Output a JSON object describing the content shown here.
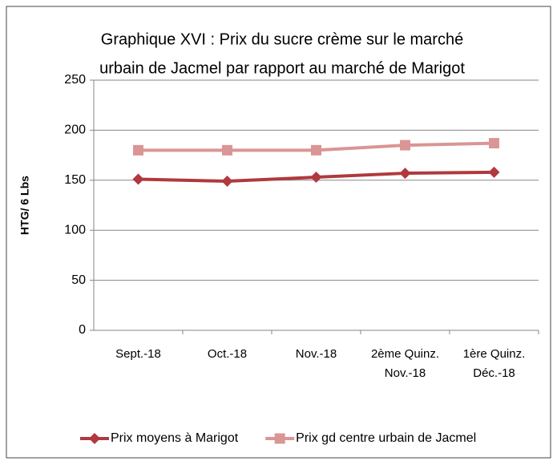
{
  "chart_data": {
    "type": "line",
    "title": [
      "Graphique XVI : Prix du sucre crème sur le marché",
      "urbain de Jacmel par rapport au marché de Marigot"
    ],
    "ylabel": "HTG/ 6 Lbs",
    "categories": [
      "Sept.-18",
      "Oct.-18",
      "Nov.-18",
      "2ème Quinz. Nov.-18",
      "1ère Quinz. Déc.-18"
    ],
    "series": [
      {
        "name": "Prix moyens à Marigot",
        "color": "#b0393d",
        "marker": "diamond",
        "values": [
          151,
          149,
          153,
          157,
          158
        ]
      },
      {
        "name": "Prix gd centre urbain de Jacmel",
        "color": "#d99694",
        "marker": "square",
        "values": [
          180,
          180,
          180,
          185,
          187
        ]
      }
    ],
    "ylim": [
      0,
      250
    ],
    "yticks": [
      0,
      50,
      100,
      150,
      200,
      250
    ],
    "grid": true,
    "legend": "bottom"
  }
}
